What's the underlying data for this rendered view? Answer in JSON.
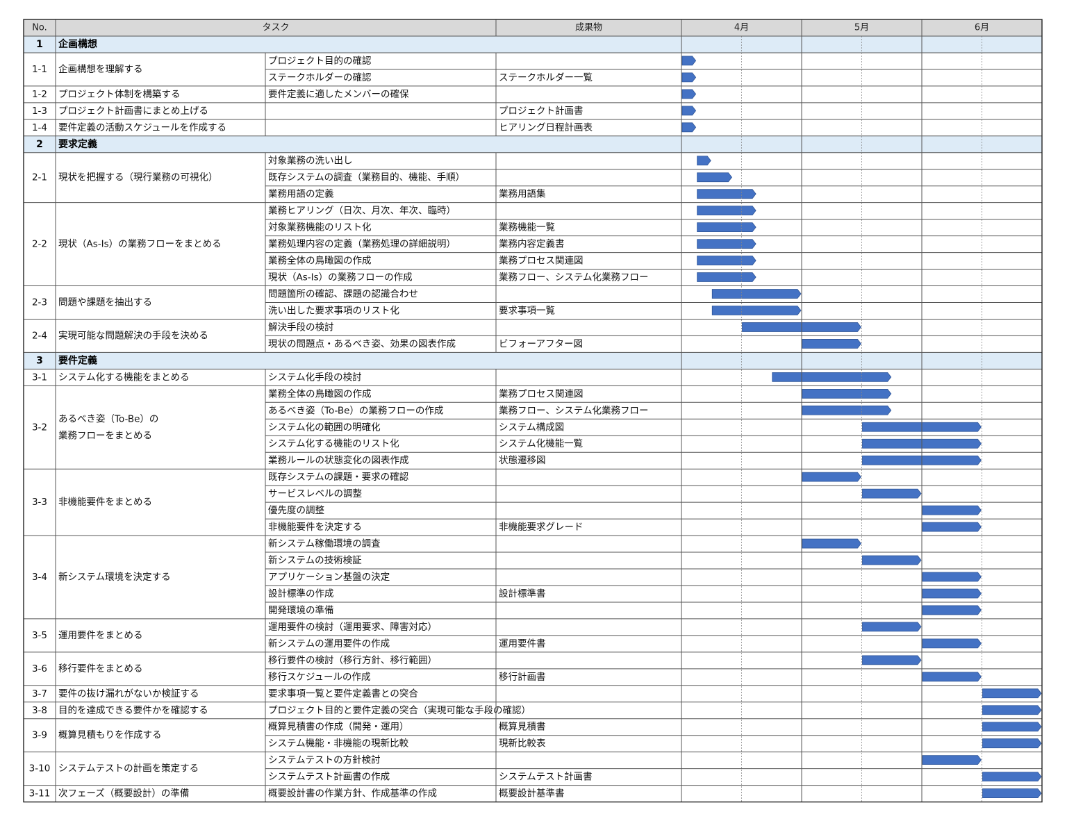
{
  "header": {
    "no": "No.",
    "task": "タスク",
    "deliverable": "成果物",
    "months": [
      "4月",
      "5月",
      "6月"
    ]
  },
  "colors": {
    "bar": "#4472C4",
    "bar_edge": "#2F5597",
    "section_bg": "#DDEBF7",
    "header_bg": "#D9D9D9",
    "grid": "#555555"
  },
  "sections": [
    {
      "no": "1",
      "title": "企画構想",
      "groups": [
        {
          "no": "1-1",
          "title": "企画構想を理解する",
          "rows": [
            {
              "sub": "プロジェクト目的の確認",
              "deliv": "",
              "start": 0,
              "end": 0.5
            },
            {
              "sub": "ステークホルダーの確認",
              "deliv": "ステークホルダー一覧",
              "start": 0,
              "end": 0.5
            }
          ]
        },
        {
          "no": "1-2",
          "title": "プロジェクト体制を構築する",
          "rows": [
            {
              "sub": "要件定義に適したメンバーの確保",
              "deliv": "",
              "start": 0,
              "end": 0.5
            }
          ]
        },
        {
          "no": "1-3",
          "title": "プロジェクト計画書にまとめ上げる",
          "rows": [
            {
              "sub": "",
              "deliv": "プロジェクト計画書",
              "start": 0,
              "end": 0.5
            }
          ]
        },
        {
          "no": "1-4",
          "title": "要件定義の活動スケジュールを作成する",
          "rows": [
            {
              "sub": "",
              "deliv": "ヒアリング日程計画表",
              "start": 0,
              "end": 0.5
            }
          ]
        }
      ]
    },
    {
      "no": "2",
      "title": "要求定義",
      "groups": [
        {
          "no": "2-1",
          "title": "現状を把握する（現行業務の可視化）",
          "rows": [
            {
              "sub": "対象業務の洗い出し",
              "deliv": "",
              "start": 0.5,
              "end": 1
            },
            {
              "sub": "既存システムの調査（業務目的、機能、手順）",
              "deliv": "",
              "start": 0.5,
              "end": 1.7
            },
            {
              "sub": "業務用語の定義",
              "deliv": "業務用語集",
              "start": 0.5,
              "end": 2.5
            }
          ]
        },
        {
          "no": "2-2",
          "title": "現状（As-Is）の業務フローをまとめる",
          "rows": [
            {
              "sub": "業務ヒアリング（日次、月次、年次、臨時）",
              "deliv": "",
              "start": 0.5,
              "end": 2.5
            },
            {
              "sub": "対象業務機能のリスト化",
              "deliv": "業務機能一覧",
              "start": 0.5,
              "end": 2.5
            },
            {
              "sub": "業務処理内容の定義（業務処理の詳細説明）",
              "deliv": "業務内容定義書",
              "start": 0.5,
              "end": 2.5
            },
            {
              "sub": "業務全体の鳥瞰図の作成",
              "deliv": "業務プロセス関連図",
              "start": 0.5,
              "end": 2.5
            },
            {
              "sub": "現状（As-Is）の業務フローの作成",
              "deliv": "業務フロー、システム化業務フロー",
              "start": 0.5,
              "end": 2.5
            }
          ]
        },
        {
          "no": "2-3",
          "title": "問題や課題を抽出する",
          "rows": [
            {
              "sub": "問題箇所の確認、課題の認識合わせ",
              "deliv": "",
              "start": 1,
              "end": 4
            },
            {
              "sub": "洗い出した要求事項のリスト化",
              "deliv": "要求事項一覧",
              "start": 1,
              "end": 4
            }
          ]
        },
        {
          "no": "2-4",
          "title": "実現可能な問題解決の手段を決める",
          "rows": [
            {
              "sub": "解決手段の検討",
              "deliv": "",
              "start": 2,
              "end": 6
            },
            {
              "sub": "現状の問題点・あるべき姿、効果の図表作成",
              "deliv": "ビフォーアフター図",
              "start": 4,
              "end": 6
            }
          ]
        }
      ]
    },
    {
      "no": "3",
      "title": "要件定義",
      "groups": [
        {
          "no": "3-1",
          "title": "システム化する機能をまとめる",
          "rows": [
            {
              "sub": "システム化手段の検討",
              "deliv": "",
              "start": 3,
              "end": 7
            }
          ]
        },
        {
          "no": "3-2",
          "title": "あるべき姿（To-Be）の\n業務フローをまとめる",
          "rows": [
            {
              "sub": "業務全体の鳥瞰図の作成",
              "deliv": "業務プロセス関連図",
              "start": 4,
              "end": 7
            },
            {
              "sub": "あるべき姿（To-Be）の業務フローの作成",
              "deliv": "業務フロー、システム化業務フロー",
              "start": 4,
              "end": 7
            },
            {
              "sub": "システム化の範囲の明確化",
              "deliv": "システム構成図",
              "start": 6,
              "end": 10
            },
            {
              "sub": "システム化する機能のリスト化",
              "deliv": "システム化機能一覧",
              "start": 6,
              "end": 10
            },
            {
              "sub": "業務ルールの状態変化の図表作成",
              "deliv": "状態遷移図",
              "start": 6,
              "end": 10
            }
          ]
        },
        {
          "no": "3-3",
          "title": "非機能要件をまとめる",
          "rows": [
            {
              "sub": "既存システムの課題・要求の確認",
              "deliv": "",
              "start": 4,
              "end": 6
            },
            {
              "sub": "サービスレベルの調整",
              "deliv": "",
              "start": 6,
              "end": 8
            },
            {
              "sub": "優先度の調整",
              "deliv": "",
              "start": 8,
              "end": 10
            },
            {
              "sub": "非機能要件を決定する",
              "deliv": "非機能要求グレード",
              "start": 8,
              "end": 10
            }
          ]
        },
        {
          "no": "3-4",
          "title": "新システム環境を決定する",
          "rows": [
            {
              "sub": "新システム稼働環境の調査",
              "deliv": "",
              "start": 4,
              "end": 6
            },
            {
              "sub": "新システムの技術検証",
              "deliv": "",
              "start": 6,
              "end": 8
            },
            {
              "sub": "アプリケーション基盤の決定",
              "deliv": "",
              "start": 8,
              "end": 10
            },
            {
              "sub": "設計標準の作成",
              "deliv": "設計標準書",
              "start": 8,
              "end": 10
            },
            {
              "sub": "開発環境の準備",
              "deliv": "",
              "start": 8,
              "end": 10
            }
          ]
        },
        {
          "no": "3-5",
          "title": "運用要件をまとめる",
          "rows": [
            {
              "sub": "運用要件の検討（運用要求、障害対応）",
              "deliv": "",
              "start": 6,
              "end": 8
            },
            {
              "sub": "新システムの運用要件の作成",
              "deliv": "運用要件書",
              "start": 8,
              "end": 10
            }
          ]
        },
        {
          "no": "3-6",
          "title": "移行要件をまとめる",
          "rows": [
            {
              "sub": "移行要件の検討（移行方針、移行範囲）",
              "deliv": "",
              "start": 6,
              "end": 8
            },
            {
              "sub": "移行スケジュールの作成",
              "deliv": "移行計画書",
              "start": 8,
              "end": 10
            }
          ]
        },
        {
          "no": "3-7",
          "title": "要件の抜け漏れがないか検証する",
          "rows": [
            {
              "sub": "要求事項一覧と要件定義書との突合",
              "deliv": "",
              "start": 10,
              "end": 12
            }
          ]
        },
        {
          "no": "3-8",
          "title": "目的を達成できる要件かを確認する",
          "rows": [
            {
              "sub": "プロジェクト目的と要件定義の突合（実現可能な手段の確認）",
              "deliv": "",
              "start": 10,
              "end": 12
            }
          ]
        },
        {
          "no": "3-9",
          "title": "概算見積もりを作成する",
          "rows": [
            {
              "sub": "概算見積書の作成（開発・運用）",
              "deliv": "概算見積書",
              "start": 10,
              "end": 12
            },
            {
              "sub": "システム機能・非機能の現新比較",
              "deliv": "現新比較表",
              "start": 10,
              "end": 12
            }
          ]
        },
        {
          "no": "3-10",
          "title": "システムテストの計画を策定する",
          "rows": [
            {
              "sub": "システムテストの方針検討",
              "deliv": "",
              "start": 8,
              "end": 10
            },
            {
              "sub": "システムテスト計画書の作成",
              "deliv": "システムテスト計画書",
              "start": 10,
              "end": 12
            }
          ]
        },
        {
          "no": "3-11",
          "title": "次フェーズ（概要設計）の準備",
          "rows": [
            {
              "sub": "概要設計書の作業方針、作成基準の作成",
              "deliv": "概要設計基準書",
              "start": 10,
              "end": 12
            }
          ]
        }
      ]
    }
  ],
  "chart_data": {
    "type": "gantt",
    "time_axis": {
      "unit": "quarter-month",
      "months": [
        "4月",
        "5月",
        "6月"
      ],
      "range": [
        0,
        12
      ]
    }
  }
}
